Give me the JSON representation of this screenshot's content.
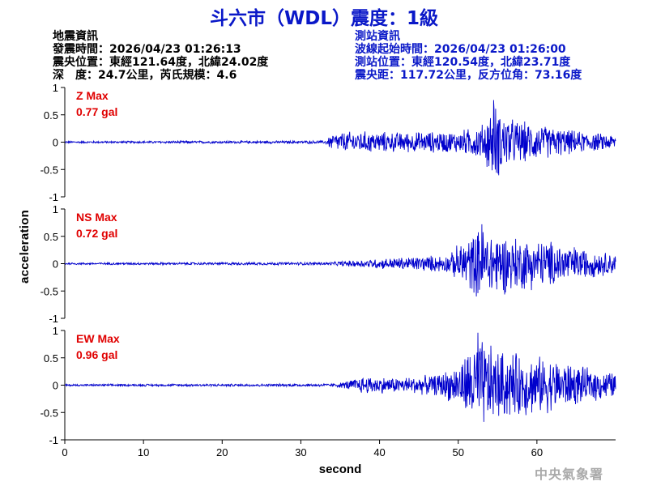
{
  "header": {
    "title": "斗六市（WDL）震度：1級"
  },
  "quake_info": {
    "heading": "地震資訊",
    "origin_time": "發震時間：2026/04/23 01:26:13",
    "epicenter": "震央位置：東經121.64度，北緯24.02度",
    "depth_magnitude": "深　度：24.7公里，芮氏規模：4.6"
  },
  "station_info": {
    "heading": "測站資訊",
    "wave_start": "波線起始時間：2026/04/23 01:26:00",
    "location": "測站位置：東經120.54度，北緯23.71度",
    "distance": "震央距：117.72公里，反方位角：73.16度"
  },
  "axes": {
    "xlabel": "second",
    "ylabel": "acceleration"
  },
  "credit": "中央氣象署",
  "chart_data": {
    "type": "line",
    "line_color": "#0000cc",
    "x_range": [
      0,
      70
    ],
    "x_ticks": [
      "0",
      "10",
      "20",
      "30",
      "40",
      "50",
      "60"
    ],
    "y_range": [
      -1,
      1
    ],
    "y_ticks": [
      "1",
      "0.5",
      "0",
      "-0.5",
      "-1"
    ],
    "panels": [
      {
        "name": "Z Max",
        "max_label": "0.77 gal",
        "peak": 0.77,
        "envelope": [
          [
            0,
            0.02
          ],
          [
            33,
            0.03
          ],
          [
            34,
            0.18
          ],
          [
            37,
            0.22
          ],
          [
            42,
            0.2
          ],
          [
            50,
            0.22
          ],
          [
            53,
            0.35
          ],
          [
            54.5,
            0.77
          ],
          [
            57,
            0.45
          ],
          [
            62,
            0.3
          ],
          [
            66,
            0.2
          ],
          [
            70,
            0.15
          ]
        ]
      },
      {
        "name": "NS Max",
        "max_label": "0.72 gal",
        "peak": 0.72,
        "envelope": [
          [
            0,
            0.02
          ],
          [
            34,
            0.03
          ],
          [
            35,
            0.05
          ],
          [
            40,
            0.1
          ],
          [
            45,
            0.15
          ],
          [
            49,
            0.18
          ],
          [
            50,
            0.4
          ],
          [
            53,
            0.72
          ],
          [
            57,
            0.55
          ],
          [
            62,
            0.45
          ],
          [
            66,
            0.3
          ],
          [
            70,
            0.2
          ]
        ]
      },
      {
        "name": "EW Max",
        "max_label": "0.96 gal",
        "peak": 0.96,
        "envelope": [
          [
            0,
            0.02
          ],
          [
            34,
            0.03
          ],
          [
            35,
            0.05
          ],
          [
            38,
            0.18
          ],
          [
            42,
            0.15
          ],
          [
            47,
            0.2
          ],
          [
            50,
            0.4
          ],
          [
            52.5,
            0.96
          ],
          [
            55,
            0.7
          ],
          [
            59,
            0.6
          ],
          [
            63,
            0.5
          ],
          [
            66,
            0.35
          ],
          [
            70,
            0.25
          ]
        ]
      }
    ]
  }
}
